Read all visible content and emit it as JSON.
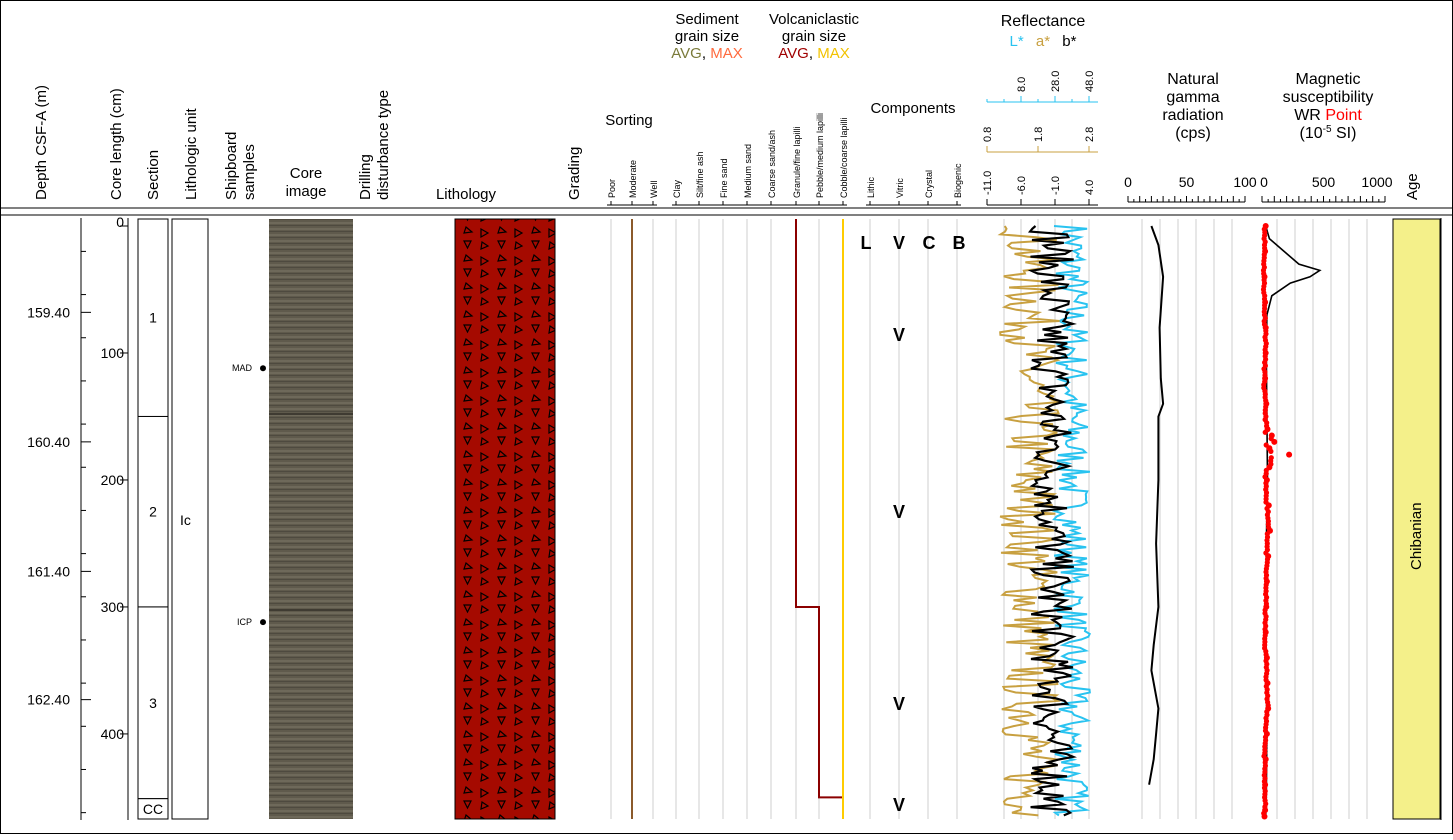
{
  "headers": {
    "depth": "Depth CSF-A (m)",
    "core_length": "Core length (cm)",
    "section": "Section",
    "lith_unit": "Lithologic unit",
    "shipboard1": "Shipboard",
    "shipboard2": "samples",
    "core_image1": "Core",
    "core_image2": "image",
    "drilling1": "Drilling",
    "drilling2": "disturbance type",
    "lithology": "Lithology",
    "grading": "Grading",
    "sorting": "Sorting",
    "sed_title1": "Sediment",
    "sed_title2": "grain size",
    "sed_avg": "AVG",
    "sed_comma": ", ",
    "sed_max": "MAX",
    "volc_title1": "Volcaniclastic",
    "volc_title2": "grain size",
    "volc_avg": "AVG",
    "volc_comma": ", ",
    "volc_max": "MAX",
    "components": "Components",
    "reflectance": "Reflectance",
    "refl_L": "L*",
    "refl_a": "a*",
    "refl_b": "b*",
    "ngr1": "Natural",
    "ngr2": "gamma",
    "ngr3": "radiation",
    "ngr4": "(cps)",
    "ms1": "Magnetic",
    "ms2": "susceptibility",
    "ms3": "WR ",
    "ms3b": "Point",
    "ms4": "(10",
    "ms4sup": "-5",
    "ms4end": " SI)",
    "age": "Age"
  },
  "sorting_ticks": [
    "Poor",
    "Moderate",
    "Well"
  ],
  "grain_ticks": [
    "Clay",
    "Silt/fine ash",
    "Fine sand",
    "Medium sand",
    "Coarse sand/ash",
    "Granule/fine lapilli",
    "Pebble/medium lapilli",
    "Cobble/coarse lapilli"
  ],
  "component_ticks": [
    "Lithic",
    "Vitric",
    "Crystal",
    "Biogenic"
  ],
  "refl_L_ticks": [
    "8.0",
    "28.0",
    "48.0"
  ],
  "refl_a_ticks": [
    "0.8",
    "1.8",
    "2.8"
  ],
  "refl_b_ticks": [
    "-11.0",
    "-6.0",
    "-1.0",
    "4.0"
  ],
  "ngr_ticks": [
    "0",
    "50",
    "100"
  ],
  "ms_ticks": [
    "0",
    "500",
    "1000"
  ],
  "depth_ticks": [
    "159.40",
    "160.40",
    "161.40",
    "162.40"
  ],
  "core_length_ticks": [
    "0",
    "100",
    "200",
    "300",
    "400"
  ],
  "sections": [
    {
      "label": "1",
      "top": 0,
      "bottom": 150
    },
    {
      "label": "2",
      "top": 150,
      "bottom": 300
    },
    {
      "label": "3",
      "top": 300,
      "bottom": 451
    },
    {
      "label": "CC",
      "top": 451,
      "bottom": 467
    }
  ],
  "lith_unit": "Ic",
  "samples": [
    {
      "label": "MAD",
      "cm": 112
    },
    {
      "label": "ICP",
      "cm": 312
    }
  ],
  "component_letters": [
    "L",
    "V",
    "C",
    "B"
  ],
  "component_v_marks": [
    "V",
    "V",
    "V",
    "V"
  ],
  "age_label": "Chibanian",
  "colors": {
    "lithology_fill": "#a50a00",
    "sorting_line": "#8b5a2b",
    "volc_avg": "#8b0000",
    "volc_max": "#ffcc00",
    "sed_avg": "#7a7a3a",
    "sed_max": "#ff6a3d",
    "refl_L": "#29c3f0",
    "refl_a": "#c8a040",
    "refl_b": "#000000",
    "ms_point": "#ff0000",
    "age_fill": "#f4f08a"
  },
  "chart_data": {
    "type": "line",
    "depth_range_m": [
      158.82,
      163.49
    ],
    "core_length_range_cm": [
      0,
      467
    ],
    "sorting": "Moderate",
    "volcaniclastic_avg_steps": [
      {
        "from_cm": 0,
        "to_cm": 300,
        "class": "Granule/fine lapilli"
      },
      {
        "from_cm": 300,
        "to_cm": 450,
        "class": "Pebble/medium lapilli"
      },
      {
        "from_cm": 450,
        "to_cm": 467,
        "class": "Cobble/coarse lapilli"
      }
    ],
    "volcaniclastic_max": "Cobble/coarse lapilli",
    "ngr": {
      "xlim": [
        0,
        100
      ],
      "cm": [
        0,
        15,
        40,
        80,
        120,
        140,
        150,
        200,
        250,
        300,
        330,
        350,
        380,
        400,
        420,
        440
      ],
      "cps": [
        20,
        26,
        30,
        27,
        28,
        30,
        26,
        26,
        24,
        26,
        22,
        20,
        26,
        24,
        22,
        18
      ]
    },
    "ms_wr": {
      "xlim": [
        0,
        1000
      ],
      "cm": [
        0,
        10,
        20,
        30,
        35,
        40,
        45,
        55,
        70,
        100,
        150,
        200,
        250,
        300,
        350,
        400,
        450,
        465
      ],
      "si": [
        30,
        60,
        180,
        300,
        470,
        390,
        230,
        80,
        40,
        35,
        40,
        45,
        35,
        30,
        35,
        40,
        35,
        30
      ]
    },
    "ms_point": {
      "xlim": [
        0,
        1000
      ],
      "cm": [
        0,
        20,
        40,
        60,
        80,
        100,
        120,
        140,
        160,
        165,
        170,
        175,
        180,
        190,
        200,
        220,
        240,
        260,
        280,
        300,
        320,
        340,
        360,
        380,
        400,
        420,
        440,
        460,
        465
      ],
      "si": [
        30,
        25,
        20,
        25,
        30,
        30,
        25,
        35,
        45,
        80,
        100,
        60,
        220,
        60,
        40,
        55,
        65,
        50,
        40,
        35,
        30,
        40,
        45,
        50,
        40,
        30,
        25,
        25,
        20
      ]
    },
    "reflectance": {
      "L_xlim": [
        -12,
        58
      ],
      "a_xlim": [
        0.2,
        3.2
      ],
      "b_xlim": [
        -11,
        4
      ],
      "L_mean": 45,
      "a_mean": 1.6,
      "b_mean": 0.5
    }
  }
}
